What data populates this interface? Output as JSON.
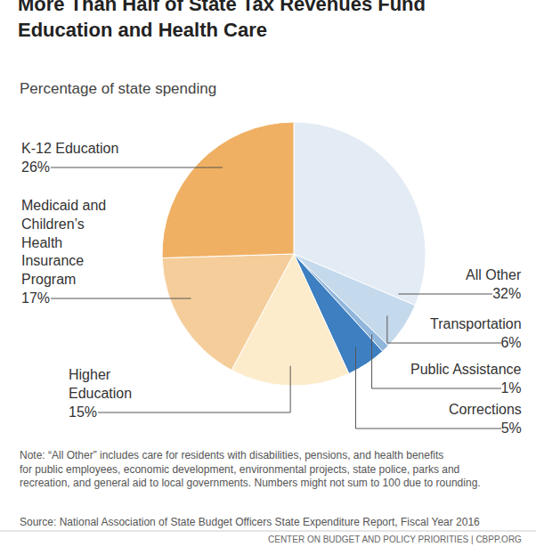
{
  "chart_data": {
    "type": "pie",
    "title": "More Than Half of State Tax Revenues Fund Education and Health Care",
    "subtitle": "Percentage of state spending",
    "categories": [
      "All Other",
      "Transportation",
      "Public Assistance",
      "Corrections",
      "Higher Education",
      "Medicaid and Children’s Health Insurance Program",
      "K-12 Education"
    ],
    "values": [
      32,
      6,
      1,
      5,
      15,
      17,
      26
    ],
    "value_labels": [
      "32%",
      "6%",
      "1%",
      "5%",
      "15%",
      "17%",
      "26%"
    ],
    "colors": [
      "#e3ebf4",
      "#c5d9ec",
      "#90b6dc",
      "#3d7fc1",
      "#fdeccb",
      "#f5cd9a",
      "#f0b063"
    ],
    "data_labels": true,
    "note": "Note: “All Other” includes care for residents with disabilities, pensions, and health benefits for public employees, economic development, environmental projects, state police, parks and recreation, and general aid to local governments. Numbers might not sum to 100 due to rounding.",
    "source": "Source: National Association of State Budget Officers State Expenditure Report, Fiscal Year 2016",
    "footer": "CENTER ON BUDGET AND POLICY PRIORITIES | CBPP.ORG"
  }
}
